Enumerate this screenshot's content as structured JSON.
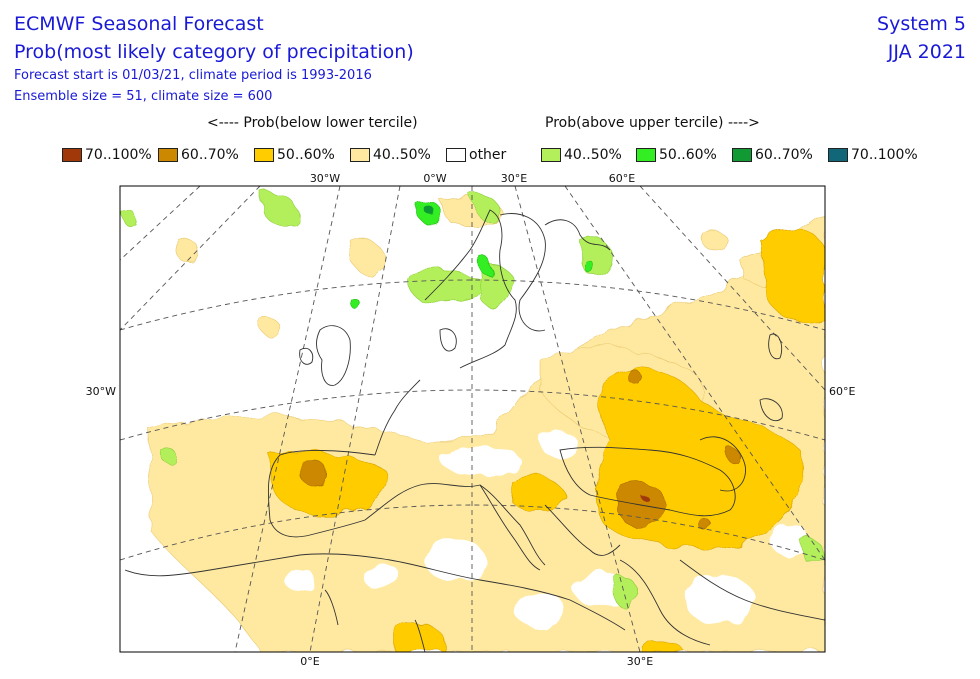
{
  "header": {
    "title_line1": "ECMWF Seasonal Forecast",
    "title_line2": "Prob(most likely category of precipitation)",
    "info_line1": "Forecast start is 01/03/21, climate period is 1993-2016",
    "info_line2": "Ensemble size = 51, climate size = 600",
    "system": "System 5",
    "season": "JJA 2021"
  },
  "legend": {
    "below_header": "<---- Prob(below lower tercile)",
    "above_header": "Prob(above upper tercile) ---->",
    "items": [
      {
        "label": "70..100%",
        "color": "#a0380a"
      },
      {
        "label": "60..70%",
        "color": "#cc8800"
      },
      {
        "label": "50..60%",
        "color": "#ffcc00"
      },
      {
        "label": "40..50%",
        "color": "#ffe9a0"
      },
      {
        "label": "other",
        "color": "#ffffff"
      },
      {
        "label": "40..50%",
        "color": "#b3ef5a"
      },
      {
        "label": "50..60%",
        "color": "#33ee22"
      },
      {
        "label": "60..70%",
        "color": "#119933"
      },
      {
        "label": "70..100%",
        "color": "#116677"
      }
    ]
  },
  "map": {
    "top_ticks": [
      "30°W",
      "0°W",
      "30°E",
      "60°E"
    ],
    "left_tick": "30°W",
    "right_tick": "60°E",
    "bottom_ticks": [
      "0°E",
      "30°E"
    ]
  }
}
